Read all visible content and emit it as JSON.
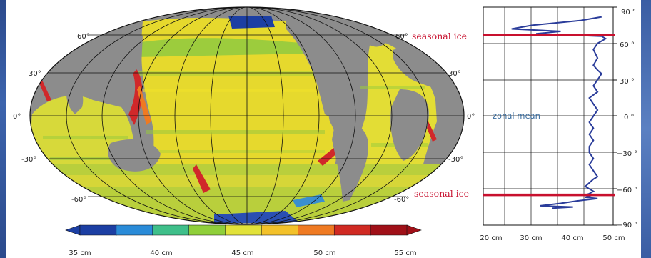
{
  "map": {
    "lat_labels_left": [
      "60°",
      "30°",
      "0°",
      "-30°",
      "-60°"
    ],
    "lat_labels_right": [
      "60°",
      "30°",
      "0°",
      "-30°",
      "-60°"
    ],
    "ocean_color": "#e8d62a",
    "land_color": "#8c8c8c"
  },
  "colorbar": {
    "tick_labels": [
      "35 cm",
      "40 cm",
      "45 cm",
      "50 cm",
      "55 cm"
    ],
    "colors": [
      "#1c3fa3",
      "#2a8bd8",
      "#3fbf8a",
      "#8fcf3a",
      "#e2e23a",
      "#f3c12a",
      "#ef7a22",
      "#d02a22",
      "#a01018"
    ]
  },
  "zonal": {
    "title": "zonal mean",
    "lat_tick_labels": [
      "90 °",
      "60 °",
      "30 °",
      "0 °",
      "−30 °",
      "−60 °",
      "−90 °"
    ],
    "x_tick_labels": [
      "20 cm",
      "30 cm",
      "40 cm",
      "50 cm"
    ],
    "seasonal_ice_north": "seasonal ice",
    "seasonal_ice_south": "seasonal ice",
    "line_color": "#2a3c9a",
    "ice_color": "#c8102e"
  },
  "chart_data": {
    "type": "line",
    "xlabel": "",
    "ylabel": "",
    "xlim": [
      20,
      50
    ],
    "ylim": [
      -90,
      90
    ],
    "seasonal_ice_latitudes": [
      67,
      -65
    ],
    "series": [
      {
        "x": [
          47,
          42,
          36,
          30,
          25,
          37,
          31,
          47,
          48,
          46,
          45,
          46,
          45,
          46,
          47,
          46,
          45,
          46,
          44,
          45,
          46,
          45,
          44,
          45,
          44,
          45,
          44,
          44,
          45,
          44,
          45,
          46,
          45,
          44,
          43,
          44,
          45,
          44,
          43,
          44,
          43,
          46,
          41,
          37,
          32,
          40,
          35
        ],
        "y": [
          82,
          79,
          77,
          75,
          72,
          70,
          68,
          66,
          64,
          60,
          55,
          48,
          42,
          38,
          35,
          30,
          25,
          20,
          15,
          10,
          5,
          0,
          -5,
          -10,
          -15,
          -20,
          -25,
          -30,
          -35,
          -40,
          -45,
          -50,
          -52,
          -55,
          -58,
          -60,
          -62,
          -64,
          -65,
          -66,
          -67,
          -68,
          -70,
          -72,
          -74,
          -75,
          -76
        ]
      }
    ]
  }
}
